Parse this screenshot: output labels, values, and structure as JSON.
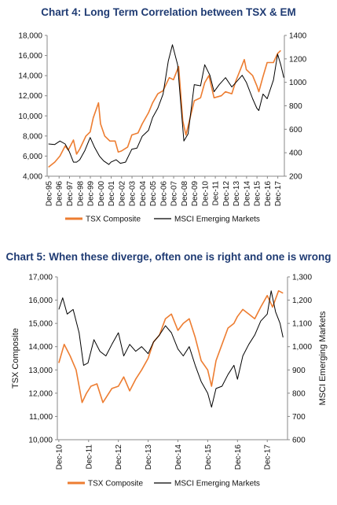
{
  "colors": {
    "tsx": "#ED7D31",
    "em": "#000000",
    "title": "#1F3B73"
  },
  "chart_data": [
    {
      "type": "line",
      "title": "Chart 4: Long Term Correlation between TSX & EM",
      "xlabel": "",
      "ylabel": "",
      "x_ticks": [
        "Dec-95",
        "Dec-96",
        "Dec-97",
        "Dec-98",
        "Dec-99",
        "Dec-00",
        "Dec-01",
        "Dec-02",
        "Dec-03",
        "Dec-04",
        "Dec-05",
        "Dec-06",
        "Dec-07",
        "Dec-08",
        "Dec-09",
        "Dec-10",
        "Dec-11",
        "Dec-12",
        "Dec-13",
        "Dec-14",
        "Dec-15",
        "Dec-16",
        "Dec-17"
      ],
      "y_left_ticks": [
        "4,000",
        "6,000",
        "8,000",
        "10,000",
        "12,000",
        "14,000",
        "16,000",
        "18,000"
      ],
      "y_right_ticks": [
        "200",
        "400",
        "600",
        "800",
        "1000",
        "1200",
        "1400"
      ],
      "ylim_left": [
        4000,
        18000
      ],
      "ylim_right": [
        200,
        1400
      ],
      "legend": [
        "TSX Composite",
        "MSCI Emerging Markets"
      ],
      "legend_position": "bottom",
      "grid": false,
      "series": [
        {
          "name": "TSX Composite",
          "axis": "left",
          "x": [
            1995.9,
            1996.5,
            1997.0,
            1997.5,
            1997.8,
            1998.3,
            1998.6,
            1998.9,
            1999.5,
            1999.9,
            2000.2,
            2000.7,
            2000.9,
            2001.3,
            2001.8,
            2002.3,
            2002.6,
            2002.9,
            2003.5,
            2003.9,
            2004.5,
            2004.9,
            2005.5,
            2005.9,
            2006.4,
            2006.9,
            2007.5,
            2007.9,
            2008.4,
            2008.8,
            2009.1,
            2009.5,
            2009.9,
            2010.5,
            2010.9,
            2011.3,
            2011.8,
            2012.5,
            2012.9,
            2013.5,
            2013.9,
            2014.4,
            2014.7,
            2014.9,
            2015.5,
            2015.9,
            2016.1,
            2016.5,
            2016.9,
            2017.5,
            2017.9,
            2018.2
          ],
          "y": [
            4900,
            5400,
            6000,
            7000,
            6600,
            7600,
            6200,
            6700,
            8000,
            8400,
            9800,
            11300,
            9200,
            8000,
            7500,
            7500,
            6400,
            6500,
            6900,
            8100,
            8300,
            9200,
            10300,
            11300,
            12200,
            12500,
            13800,
            13600,
            14900,
            9500,
            8100,
            9800,
            11500,
            11800,
            13300,
            14000,
            11800,
            12000,
            12400,
            12200,
            13500,
            14800,
            15600,
            14600,
            14000,
            13000,
            12400,
            13900,
            15300,
            15300,
            16200,
            16500
          ]
        },
        {
          "name": "MSCI Emerging Markets",
          "axis": "right",
          "x": [
            1995.9,
            1996.5,
            1997.0,
            1997.5,
            1997.9,
            1998.3,
            1998.6,
            1998.9,
            1999.4,
            1999.9,
            2000.3,
            2000.8,
            2001.2,
            2001.7,
            2001.9,
            2002.4,
            2002.8,
            2003.3,
            2003.9,
            2004.4,
            2004.9,
            2005.5,
            2005.9,
            2006.4,
            2006.9,
            2007.4,
            2007.8,
            2008.3,
            2008.6,
            2008.9,
            2009.3,
            2009.9,
            2010.5,
            2010.9,
            2011.4,
            2011.8,
            2012.3,
            2012.9,
            2013.5,
            2013.9,
            2014.5,
            2014.9,
            2015.5,
            2015.9,
            2016.1,
            2016.5,
            2016.9,
            2017.5,
            2017.9,
            2018.2,
            2018.5
          ],
          "y": [
            475,
            470,
            500,
            475,
            410,
            320,
            320,
            340,
            420,
            530,
            450,
            370,
            330,
            300,
            320,
            340,
            310,
            320,
            430,
            440,
            540,
            590,
            700,
            780,
            900,
            1180,
            1320,
            1150,
            820,
            500,
            560,
            980,
            970,
            1150,
            1060,
            920,
            980,
            1040,
            960,
            1000,
            1060,
            1000,
            860,
            780,
            760,
            900,
            860,
            1020,
            1240,
            1150,
            1040
          ]
        }
      ]
    },
    {
      "type": "line",
      "title": "Chart 5: When these diverge, often one is right and one is wrong",
      "xlabel": "",
      "ylabel": "TSX Composite",
      "ylabel_right": "MSCI Emerging Markets",
      "x_ticks": [
        "Dec-10",
        "Dec-11",
        "Dec-12",
        "Dec-13",
        "Dec-14",
        "Dec-15",
        "Dec-16",
        "Dec-17"
      ],
      "y_left_ticks": [
        "10,000",
        "11,000",
        "12,000",
        "13,000",
        "14,000",
        "15,000",
        "16,000",
        "17,000"
      ],
      "y_right_ticks": [
        "600",
        "700",
        "800",
        "900",
        "1,000",
        "1,100",
        "1,200",
        "1,300"
      ],
      "ylim_left": [
        10000,
        17000
      ],
      "ylim_right": [
        600,
        1300
      ],
      "legend": [
        "TSX Composite",
        "MSCI Emerging Markets"
      ],
      "legend_position": "bottom",
      "grid": false,
      "series": [
        {
          "name": "TSX Composite",
          "axis": "left",
          "x": [
            2010.92,
            2011.1,
            2011.3,
            2011.5,
            2011.7,
            2011.85,
            2012.0,
            2012.2,
            2012.4,
            2012.55,
            2012.7,
            2012.92,
            2013.1,
            2013.3,
            2013.5,
            2013.7,
            2013.92,
            2014.1,
            2014.3,
            2014.5,
            2014.7,
            2014.92,
            2015.1,
            2015.3,
            2015.5,
            2015.7,
            2015.92,
            2016.05,
            2016.2,
            2016.4,
            2016.6,
            2016.8,
            2016.92,
            2017.1,
            2017.3,
            2017.5,
            2017.7,
            2017.92,
            2018.1,
            2018.3,
            2018.45
          ],
          "y": [
            13300,
            14100,
            13600,
            13000,
            11600,
            12000,
            12300,
            12400,
            11600,
            11900,
            12200,
            12300,
            12700,
            12100,
            12600,
            13000,
            13500,
            14200,
            14500,
            15200,
            15400,
            14700,
            15000,
            15200,
            14400,
            13400,
            13000,
            12300,
            13400,
            14100,
            14800,
            15000,
            15300,
            15600,
            15400,
            15200,
            15700,
            16200,
            15700,
            16400,
            16300
          ]
        },
        {
          "name": "MSCI Emerging Markets",
          "axis": "right",
          "x": [
            2010.92,
            2011.05,
            2011.2,
            2011.4,
            2011.6,
            2011.75,
            2011.9,
            2012.1,
            2012.3,
            2012.5,
            2012.7,
            2012.92,
            2013.1,
            2013.3,
            2013.5,
            2013.7,
            2013.92,
            2014.1,
            2014.3,
            2014.5,
            2014.7,
            2014.92,
            2015.1,
            2015.3,
            2015.5,
            2015.7,
            2015.92,
            2016.05,
            2016.2,
            2016.4,
            2016.6,
            2016.8,
            2016.92,
            2017.1,
            2017.3,
            2017.5,
            2017.7,
            2017.92,
            2018.05,
            2018.2,
            2018.35,
            2018.45
          ],
          "y": [
            1160,
            1210,
            1140,
            1160,
            1060,
            920,
            930,
            1030,
            980,
            960,
            1010,
            1060,
            960,
            1010,
            980,
            1000,
            970,
            1020,
            1050,
            1090,
            1060,
            990,
            960,
            1000,
            920,
            850,
            800,
            740,
            820,
            830,
            880,
            920,
            860,
            960,
            1010,
            1050,
            1110,
            1140,
            1240,
            1150,
            1100,
            1040
          ]
        }
      ]
    }
  ]
}
